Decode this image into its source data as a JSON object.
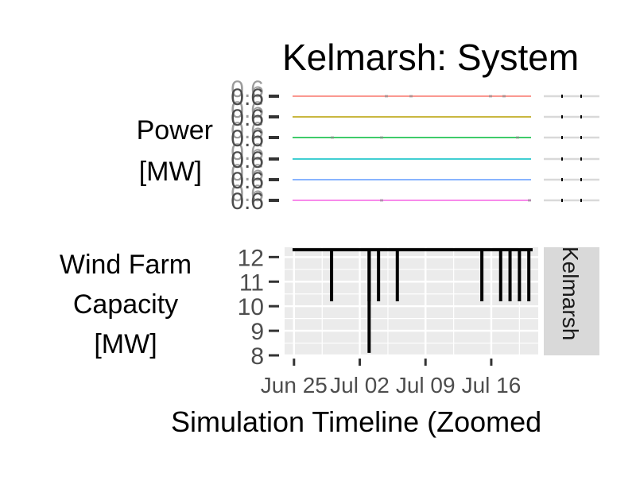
{
  "title": "Kelmarsh: System",
  "xlabel": "Simulation Timeline (Zoomed",
  "facet_label": "Kelmarsh",
  "colors": {
    "panel_bg": "#ebebeb",
    "grid": "#ffffff",
    "strip": "#d9d9d9",
    "line": "#000000",
    "series": [
      "#f8766d",
      "#b79f00",
      "#00ba38",
      "#00bfc4",
      "#619cff",
      "#f564e3"
    ]
  },
  "chart_data": [
    {
      "type": "line",
      "ylabel": [
        "Power",
        "[MW]"
      ],
      "ytick_labels": [
        "0.6",
        "0.6",
        "0.6",
        "0.6",
        "0.6",
        "0.6"
      ],
      "series_colors": [
        "#f8766d",
        "#b79f00",
        "#00ba38",
        "#00bfc4",
        "#619cff",
        "#f564e3"
      ],
      "series_values": [
        0.6,
        0.6,
        0.6,
        0.6,
        0.6,
        0.6
      ],
      "grid": true
    },
    {
      "type": "line",
      "ylabel": [
        "Wind Farm",
        "Capacity",
        "[MW]"
      ],
      "yticks": [
        8,
        9,
        10,
        11,
        12
      ],
      "ylim": [
        8,
        12.4
      ],
      "xlim": [
        "2023-06-24",
        "2023-07-21"
      ],
      "xticks": [
        {
          "date": "2023-06-25",
          "label": "Jun 25"
        },
        {
          "date": "2023-07-02",
          "label": "Jul 02"
        },
        {
          "date": "2023-07-09",
          "label": "Jul 09"
        },
        {
          "date": "2023-07-16",
          "label": "Jul 16"
        }
      ],
      "baseline": 12.3,
      "dips": [
        {
          "date": "2023-06-29",
          "value": 10.2
        },
        {
          "date": "2023-07-03",
          "value": 10.2
        },
        {
          "date": "2023-07-03",
          "value": 8.1
        },
        {
          "date": "2023-07-04",
          "value": 10.2
        },
        {
          "date": "2023-07-06",
          "value": 10.2
        },
        {
          "date": "2023-07-15",
          "value": 10.2
        },
        {
          "date": "2023-07-17",
          "value": 10.2
        },
        {
          "date": "2023-07-18",
          "value": 10.2
        },
        {
          "date": "2023-07-19",
          "value": 10.2
        },
        {
          "date": "2023-07-20",
          "value": 10.2
        }
      ],
      "grid": true
    }
  ]
}
